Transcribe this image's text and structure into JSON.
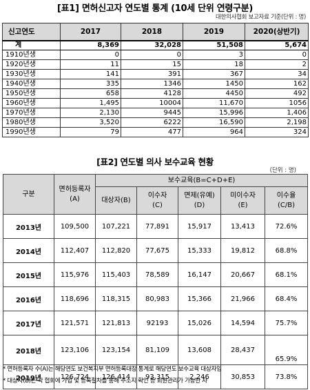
{
  "table1": {
    "title": "[표1] 면허신고자 연도별 통계 (10세 단위 연령구분)",
    "source": "대한의사협회 보고자료 기준(단위 : 명)",
    "headers": [
      "신고연도",
      "2017",
      "2018",
      "2019",
      "2020(상반기)"
    ],
    "total": [
      "계",
      "8,369",
      "32,028",
      "51,508",
      "5,674"
    ],
    "rows": [
      [
        "1910년생",
        "0",
        "0",
        "3",
        "0"
      ],
      [
        "1920년생",
        "11",
        "15",
        "18",
        "2"
      ],
      [
        "1930년생",
        "141",
        "391",
        "367",
        "34"
      ],
      [
        "1940년생",
        "335",
        "1346",
        "1450",
        "162"
      ],
      [
        "1950년생",
        "658",
        "4128",
        "4450",
        "492"
      ],
      [
        "1960년생",
        "1,495",
        "10004",
        "11,670",
        "1056"
      ],
      [
        "1970년생",
        "2,130",
        "9445",
        "15,996",
        "1,406"
      ],
      [
        "1980년생",
        "3,520",
        "6222",
        "16,590",
        "2,198"
      ],
      [
        "1990년생",
        "79",
        "477",
        "964",
        "324"
      ]
    ]
  },
  "table2": {
    "title": "[표2] 연도별 의사 보수교육 현황",
    "unit": "(단위 : 명)",
    "header": {
      "category": "구분",
      "licensed_l1": "면허등록자",
      "licensed_l2": "(A)",
      "group": "보수교육(B=C+D+E)",
      "target": "대상자(B)",
      "completed_l1": "이수자",
      "completed_l2": "(C)",
      "exempt_l1": "면제(유예)",
      "exempt_l2": "(D)",
      "incomplete_l1": "미이수자",
      "incomplete_l2": "(E)",
      "rate_l1": "이수율",
      "rate_l2": "(C/B)"
    },
    "rows": [
      [
        "2013년",
        "109,500",
        "107,221",
        "77,891",
        "15,917",
        "13,413",
        "72.6%"
      ],
      [
        "2014년",
        "112,407",
        "112,820",
        "77,675",
        "15,333",
        "19,812",
        "68.8%"
      ],
      [
        "2015년",
        "115,976",
        "115,403",
        "78,589",
        "16,147",
        "20,667",
        "68.1%"
      ],
      [
        "2016년",
        "118,696",
        "118,315",
        "80,983",
        "15,366",
        "21,966",
        "68.4%"
      ],
      [
        "2017년",
        "121,571",
        "121,813",
        "92193",
        "15,026",
        "14,594",
        "75.7%"
      ],
      [
        "2018년",
        "123,106",
        "123,154",
        "81,109",
        "13,608",
        "28,437",
        "65.9%"
      ],
      [
        "2019년",
        "126,724",
        "126,414",
        "93,315",
        "2,246",
        "30,853",
        "73.8%"
      ]
    ]
  },
  "notes": [
    "* 면허등록자 수(A)는 해당연도 보건복지부 면허등록대장 통계로 해당연도 보수교육 대상자임",
    "* 대상자(B)는 각 협회에 가입 및 등록절차를 통해 주소지 확인 등 회원관리가 가능한 자"
  ]
}
